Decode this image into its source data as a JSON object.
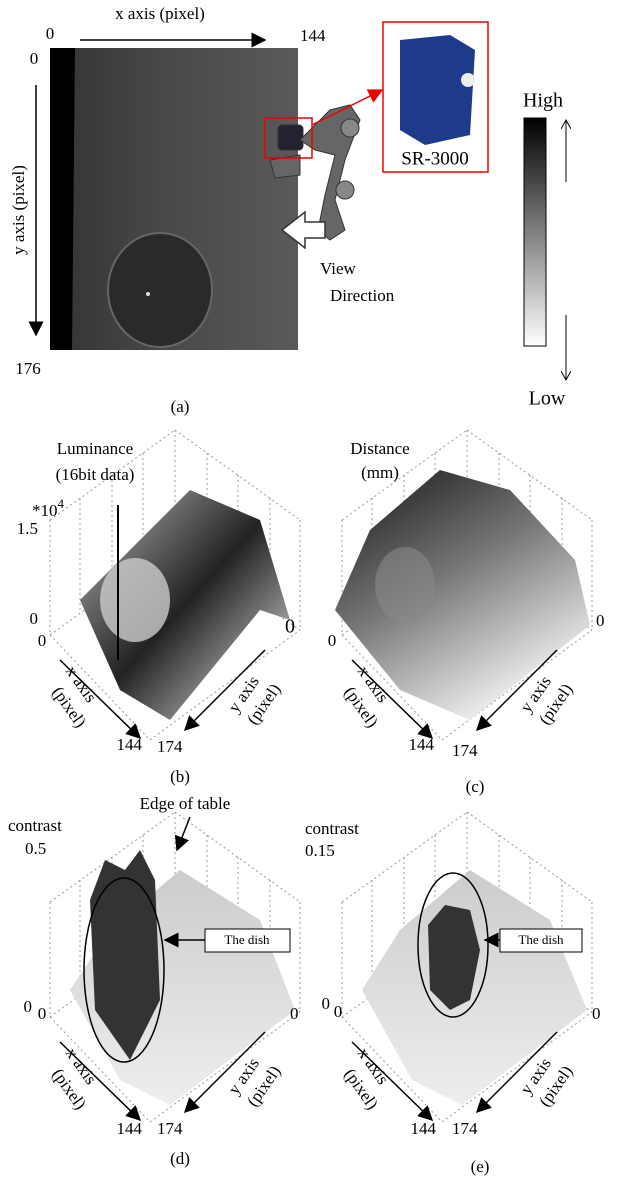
{
  "panel_a": {
    "x_axis_label": "x axis (pixel)",
    "x_start": "0",
    "x_end": "144",
    "y_start": "0",
    "y_axis_label": "y axis (pixel)",
    "y_end": "176",
    "camera": "SR-3000",
    "view_1": "View",
    "view_2": "Direction",
    "high": "High",
    "low": "Low",
    "caption": "(a)"
  },
  "panel_b": {
    "title_1": "Luminance",
    "title_2": "(16bit data)",
    "scale_base": "*10",
    "scale_exp": "4",
    "z_max": "1.5",
    "z_min": "0",
    "x_start": "0",
    "y_start": "0",
    "x_label_1": "x axis",
    "x_label_2": "(pixel)",
    "y_label_1": "y axis",
    "y_label_2": "(pixel)",
    "x_end": "144",
    "y_end": "174",
    "caption": "(b)"
  },
  "panel_c": {
    "title_1": "Distance",
    "title_2": "(mm)",
    "x_start": "0",
    "y_start": "0",
    "x_label_1": "x axis",
    "x_label_2": "(pixel)",
    "y_label_1": "y axis",
    "y_label_2": "(pixel)",
    "x_end": "144",
    "y_end": "174",
    "caption": "(c)"
  },
  "panel_d": {
    "annotation": "Edge of table",
    "z_label": "contrast",
    "z_max": "0.5",
    "z_min": "0",
    "callout": "The dish",
    "x_start": "0",
    "y_start": "0",
    "x_label_1": "x axis",
    "x_label_2": "(pixel)",
    "y_label_1": "y axis",
    "y_label_2": "(pixel)",
    "x_end": "144",
    "y_end": "174",
    "caption": "(d)"
  },
  "panel_e": {
    "z_label": "contrast",
    "z_max": "0.15",
    "z_min": "0",
    "callout": "The dish",
    "x_start": "0",
    "y_start": "0",
    "x_label_1": "x axis",
    "x_label_2": "(pixel)",
    "y_label_1": "y axis",
    "y_label_2": "(pixel)",
    "x_end": "144",
    "y_end": "174",
    "caption": "(e)"
  }
}
